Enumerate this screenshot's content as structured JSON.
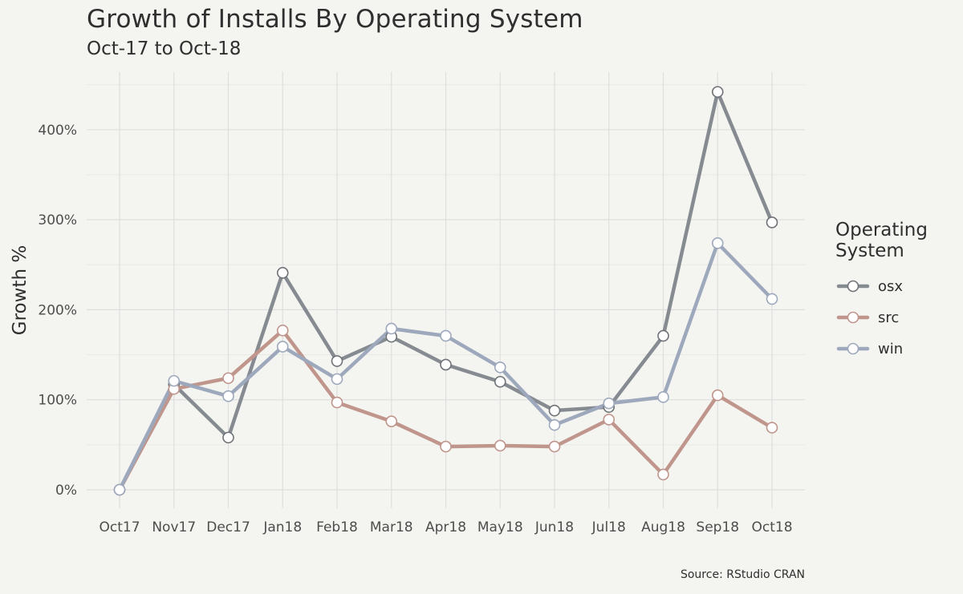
{
  "chart_data": {
    "type": "line",
    "title": "Growth of Installs By Operating System",
    "subtitle": "Oct-17 to Oct-18",
    "caption": "Source: RStudio CRAN",
    "xlabel": "",
    "ylabel": "Growth %",
    "categories": [
      "Oct17",
      "Nov17",
      "Dec17",
      "Jan18",
      "Feb18",
      "Mar18",
      "Apr18",
      "May18",
      "Jun18",
      "Jul18",
      "Aug18",
      "Sep18",
      "Oct18"
    ],
    "ylim": [
      -10,
      465
    ],
    "yticks": [
      0,
      100,
      200,
      300,
      400
    ],
    "ytick_labels": [
      "0%",
      "100%",
      "200%",
      "300%",
      "400%"
    ],
    "grid": true,
    "legend": {
      "title": "Operating System",
      "title_lines": [
        "Operating",
        "System"
      ],
      "position": "right"
    },
    "series": [
      {
        "name": "osx",
        "color": "#868b91",
        "values": [
          0,
          117,
          58,
          241,
          143,
          170,
          139,
          120,
          88,
          92,
          171,
          442,
          297
        ]
      },
      {
        "name": "src",
        "color": "#bf958c",
        "values": [
          0,
          112,
          124,
          177,
          97,
          76,
          48,
          49,
          48,
          78,
          17,
          105,
          69
        ]
      },
      {
        "name": "win",
        "color": "#9da8bc",
        "values": [
          0,
          121,
          104,
          159,
          123,
          179,
          171,
          136,
          72,
          96,
          103,
          274,
          212
        ]
      }
    ]
  }
}
